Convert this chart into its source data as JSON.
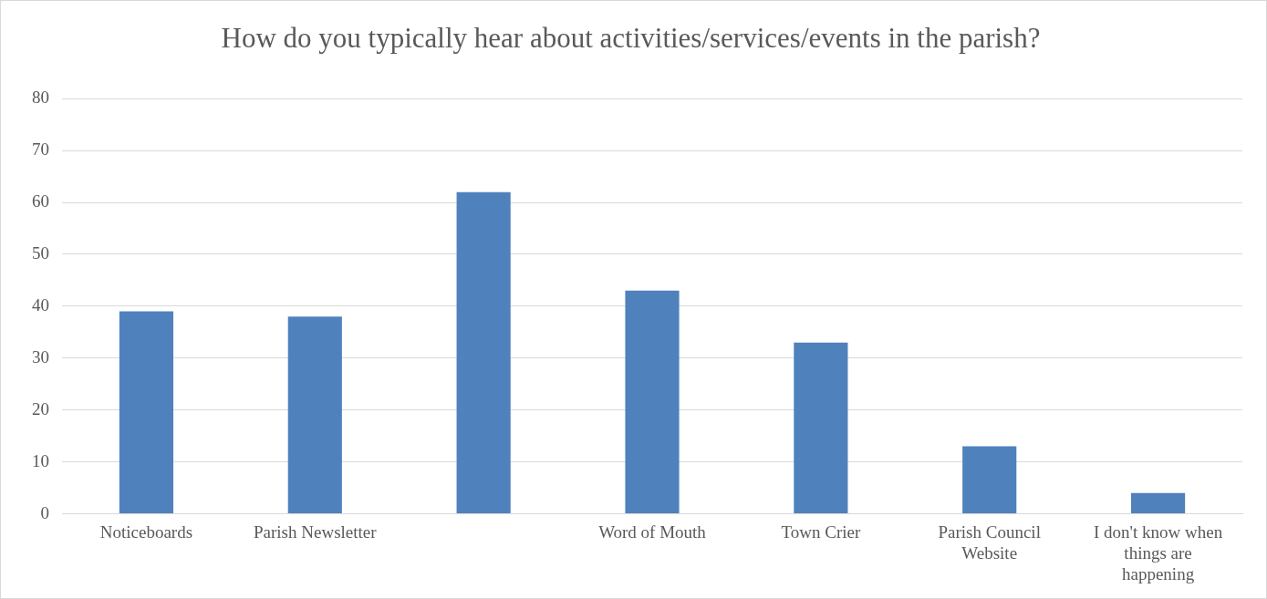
{
  "chart_data": {
    "type": "bar",
    "title": "How do you typically hear about activities/services/events in the parish?",
    "categories": [
      "Noticeboards",
      "Parish Newsletter",
      null,
      "Word of Mouth",
      "Town Crier",
      "Parish Council Website",
      "I don't know when things are happening"
    ],
    "values": [
      39,
      38,
      62,
      43,
      33,
      13,
      4
    ],
    "color": "#4f81bd",
    "ylim": [
      0,
      80
    ],
    "yticks": [
      0,
      10,
      20,
      30,
      40,
      50,
      60,
      70,
      80
    ],
    "grid": "y",
    "legend": false
  }
}
